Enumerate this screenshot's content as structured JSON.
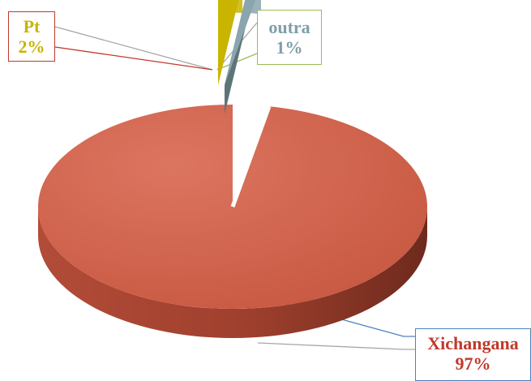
{
  "chart_data": {
    "type": "pie",
    "title": "",
    "slices": [
      {
        "name": "Pt",
        "value": 2,
        "label": "2%",
        "color": "#c9b400"
      },
      {
        "name": "outra",
        "value": 1,
        "label": "1%",
        "color": "#8aa5ad"
      },
      {
        "name": "Xichangana",
        "value": 97,
        "label": "97%",
        "color": "#d1614a"
      }
    ],
    "style": "3d-exploded",
    "legend": "none"
  }
}
